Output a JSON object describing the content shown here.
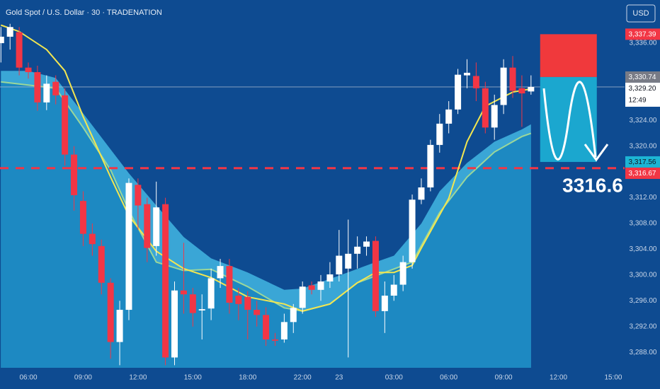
{
  "chart_data": {
    "type": "candlestick",
    "title": "Gold Spot / U.S. Dollar · 30 · TRADENATION",
    "currency": "USD",
    "categories": [
      null,
      null,
      null,
      "06:00",
      null,
      null,
      null,
      null,
      null,
      "09:00",
      null,
      null,
      null,
      null,
      null,
      "12:00",
      null,
      null,
      null,
      null,
      null,
      "15:00",
      null,
      null,
      null,
      null,
      null,
      "18:00",
      null,
      null,
      null,
      null,
      null,
      "22:00",
      null,
      null,
      null,
      "23",
      null,
      null,
      null,
      null,
      null,
      "03:00",
      null,
      null,
      null,
      null,
      null,
      "06:00",
      null,
      null,
      null,
      null,
      null,
      "09:00",
      null,
      null,
      null,
      null,
      null,
      "12:00",
      null,
      null,
      null,
      null,
      null,
      "15:00"
    ],
    "open": [
      3336,
      3337,
      3337.7,
      3332.2,
      3331.5,
      3326.8,
      3330,
      3327.9,
      3318.7,
      3311.5,
      3306.4,
      3304.5,
      3298.8,
      3289.6,
      3294.6,
      3314,
      3311,
      3304.5,
      3311,
      3287.2,
      3297.6,
      3297,
      3294.5,
      3294.8,
      3299.5,
      3301.4,
      3296.8,
      3296.6,
      3294.6,
      3293.8,
      3290,
      3290,
      3292.7,
      3294.9,
      3298.4,
      3297.7,
      3299,
      3300.1,
      3301,
      3303.3,
      3304.4,
      3305.3,
      3294.4,
      3296.8,
      3298.5,
      3302,
      3311.7,
      3313.6,
      3320.2,
      3323.5,
      3325.7,
      3331,
      3330.9,
      3329,
      3322.9,
      3326.4,
      3332.2,
      3329,
      3328.5,
      null,
      null,
      null,
      null,
      null,
      null,
      null,
      null,
      null
    ],
    "high": [
      3338.5,
      3339,
      3338.5,
      3333,
      3332.5,
      3331,
      3331,
      3329,
      3320,
      3313,
      3308,
      3305.5,
      3299.5,
      3296,
      3315,
      3315,
      3312,
      3314.5,
      3312,
      3299,
      3305,
      3298,
      3297,
      3301,
      3302.5,
      3302.5,
      3298,
      3297.5,
      3296,
      3295,
      3291,
      3294,
      3295.5,
      3299,
      3299,
      3300,
      3302,
      3307,
      3308.6,
      3306,
      3306,
      3306,
      3299,
      3300,
      3303,
      3312.5,
      3315,
      3321,
      3325,
      3327,
      3332,
      3333.5,
      3333,
      3330,
      3328,
      3333.5,
      3334,
      3331,
      3331,
      null,
      null,
      null,
      null,
      null,
      null,
      null,
      null,
      null
    ],
    "low": [
      3333,
      3335,
      3331,
      3330.5,
      3325.5,
      3325.6,
      3326.5,
      3317,
      3310,
      3304.5,
      3303,
      3297,
      3287,
      3286,
      3293,
      3307,
      3302,
      3303,
      3286,
      3286,
      3294,
      3292,
      3290,
      3293,
      3298,
      3294,
      3293,
      3290,
      3292,
      3289,
      3289,
      3289.5,
      3291,
      3294,
      3297,
      3296,
      3298,
      3299,
      3287.2,
      3301,
      3303,
      3293.5,
      3291,
      3296,
      3297.5,
      3301,
      3311,
      3313,
      3319,
      3322,
      3325,
      3329,
      3327,
      3322,
      3321,
      3325,
      3327.5,
      3323,
      3328,
      null,
      null,
      null,
      null,
      null,
      null,
      null,
      null,
      null
    ],
    "close": [
      3337,
      3338.5,
      3332.2,
      3331.5,
      3326.8,
      3329.7,
      3327.9,
      3318.7,
      3312.4,
      3306.4,
      3304.8,
      3298.8,
      3289.6,
      3294.6,
      3314.3,
      3310.8,
      3304.2,
      3310.5,
      3287.2,
      3297.6,
      3297,
      3294.1,
      3294.7,
      3299.5,
      3301.4,
      3295.7,
      3295.5,
      3294.6,
      3293.8,
      3290,
      3289.8,
      3292.7,
      3294.9,
      3298.2,
      3297.7,
      3299,
      3300.1,
      3303,
      3303.3,
      3304.4,
      3305.2,
      3294.4,
      3296.8,
      3298.5,
      3302,
      3311.7,
      3313.6,
      3320.2,
      3323.5,
      3325.7,
      3331.1,
      3331.4,
      3329,
      3322.9,
      3326.4,
      3332.2,
      3328.6,
      3328.2,
      3329.2,
      null,
      null,
      null,
      null,
      null,
      null,
      null,
      null,
      null
    ],
    "up_color": "#ffffff",
    "down_color": "#f23645",
    "xlim": [
      -0.1,
      68.24
    ],
    "ylim": [
      3285.6,
      3342.7
    ],
    "yticks": [
      {
        "value": 3336,
        "label": "3,336.00"
      },
      {
        "value": 3324,
        "label": "3,324.00"
      },
      {
        "value": 3320,
        "label": "3,320.00"
      },
      {
        "value": 3312,
        "label": "3,312.00"
      },
      {
        "value": 3308,
        "label": "3,308.00"
      },
      {
        "value": 3304,
        "label": "3,304.00"
      },
      {
        "value": 3300,
        "label": "3,300.00"
      },
      {
        "value": 3296,
        "label": "3,296.00"
      },
      {
        "value": 3292,
        "label": "3,292.00"
      },
      {
        "value": 3288,
        "label": "3,288.00"
      }
    ],
    "band_upper": {
      "color": "#3aa6d6",
      "x": [
        0,
        3,
        6,
        9,
        12,
        14,
        17,
        20,
        23,
        27,
        31,
        33,
        37,
        41,
        43,
        46,
        48,
        51,
        54,
        57,
        58
      ],
      "values": [
        3331.7,
        3331.7,
        3330.6,
        3325.1,
        3319.5,
        3315.8,
        3310.8,
        3305.9,
        3302.6,
        3300.4,
        3297.7,
        3297.9,
        3299.9,
        3302,
        3303,
        3308,
        3313,
        3317.4,
        3320.7,
        3322.6,
        3323.4
      ]
    },
    "band_lower": {
      "color": "#1d89c2",
      "line_color": "#9bd79a",
      "x": [
        0,
        6,
        9,
        12,
        14,
        17,
        20,
        23,
        27,
        31,
        33,
        36,
        39,
        42,
        45,
        48,
        51,
        54,
        57,
        58
      ],
      "values": [
        3330,
        3329,
        3322.9,
        3316.3,
        3310,
        3302,
        3300.7,
        3300.9,
        3298.2,
        3294.9,
        3294.4,
        3295.5,
        3298.8,
        3300.4,
        3302,
        3309.7,
        3315.2,
        3319.1,
        3321.5,
        3322
      ]
    },
    "ema": {
      "color": "#f3e650",
      "x": [
        0,
        2,
        5,
        7,
        9,
        12,
        14,
        17,
        20,
        23,
        27,
        31,
        33,
        36,
        39,
        41,
        43,
        45,
        46,
        49,
        51,
        53,
        56,
        58
      ],
      "values": [
        3338.8,
        3337.8,
        3335,
        3331.7,
        3324.6,
        3315.2,
        3309.2,
        3303.7,
        3301,
        3299.6,
        3296.6,
        3295.5,
        3294.4,
        3295.5,
        3298.8,
        3300.4,
        3300.4,
        3301.5,
        3304.2,
        3311.9,
        3320.7,
        3326.2,
        3328.4,
        3328.9
      ]
    },
    "target_line": {
      "value": 3316.6,
      "color": "#f23645"
    },
    "position": {
      "x": [
        59,
        65.2
      ],
      "top": 3337.39,
      "entry": 3330.74,
      "bottom": 3317.56,
      "stop_color": "#f0393c",
      "target_color": "#1ba7cf"
    },
    "price_tags": [
      {
        "value": 3337.39,
        "label": "3,337.39",
        "color": "#f23645",
        "text_color": "#ffffff"
      },
      {
        "value": 3330.74,
        "label": "3,330.74",
        "color": "#787b86",
        "text_color": "#ffffff"
      },
      {
        "value": 3329.2,
        "label": "3,329.20",
        "sub_label": "12:49",
        "color": "#ffffff",
        "text_color": "#131722"
      },
      {
        "value": 3317.56,
        "label": "3,317.56",
        "color": "#1cb5d4",
        "text_color": "#131722"
      },
      {
        "value": 3316.67,
        "label": "3,316.67",
        "color": "#f23645",
        "text_color": "#ffffff"
      }
    ]
  }
}
